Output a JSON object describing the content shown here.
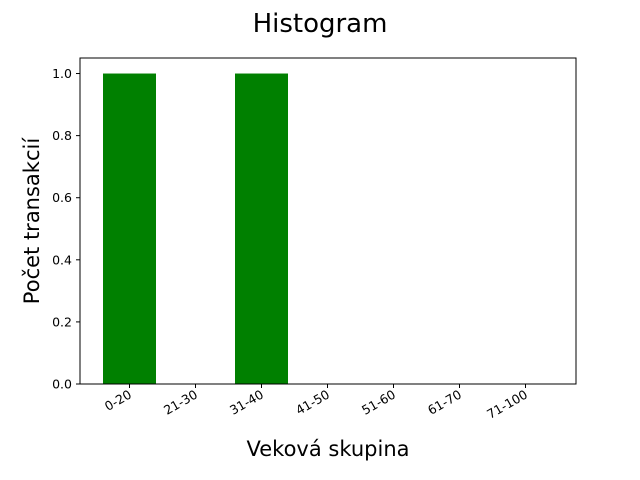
{
  "chart_data": {
    "type": "bar",
    "title": "Histogram",
    "xlabel": "Veková skupina",
    "ylabel": "Počet transakcií",
    "categories": [
      "0-20",
      "21-30",
      "31-40",
      "41-50",
      "51-60",
      "61-70",
      "71-100"
    ],
    "values": [
      1,
      0,
      1,
      0,
      0,
      0,
      0
    ],
    "ylim": [
      0,
      1.05
    ],
    "yticks": [
      "0.0",
      "0.2",
      "0.4",
      "0.6",
      "0.8",
      "1.0"
    ],
    "bar_color": "#008000",
    "grid": false,
    "legend": "none"
  }
}
